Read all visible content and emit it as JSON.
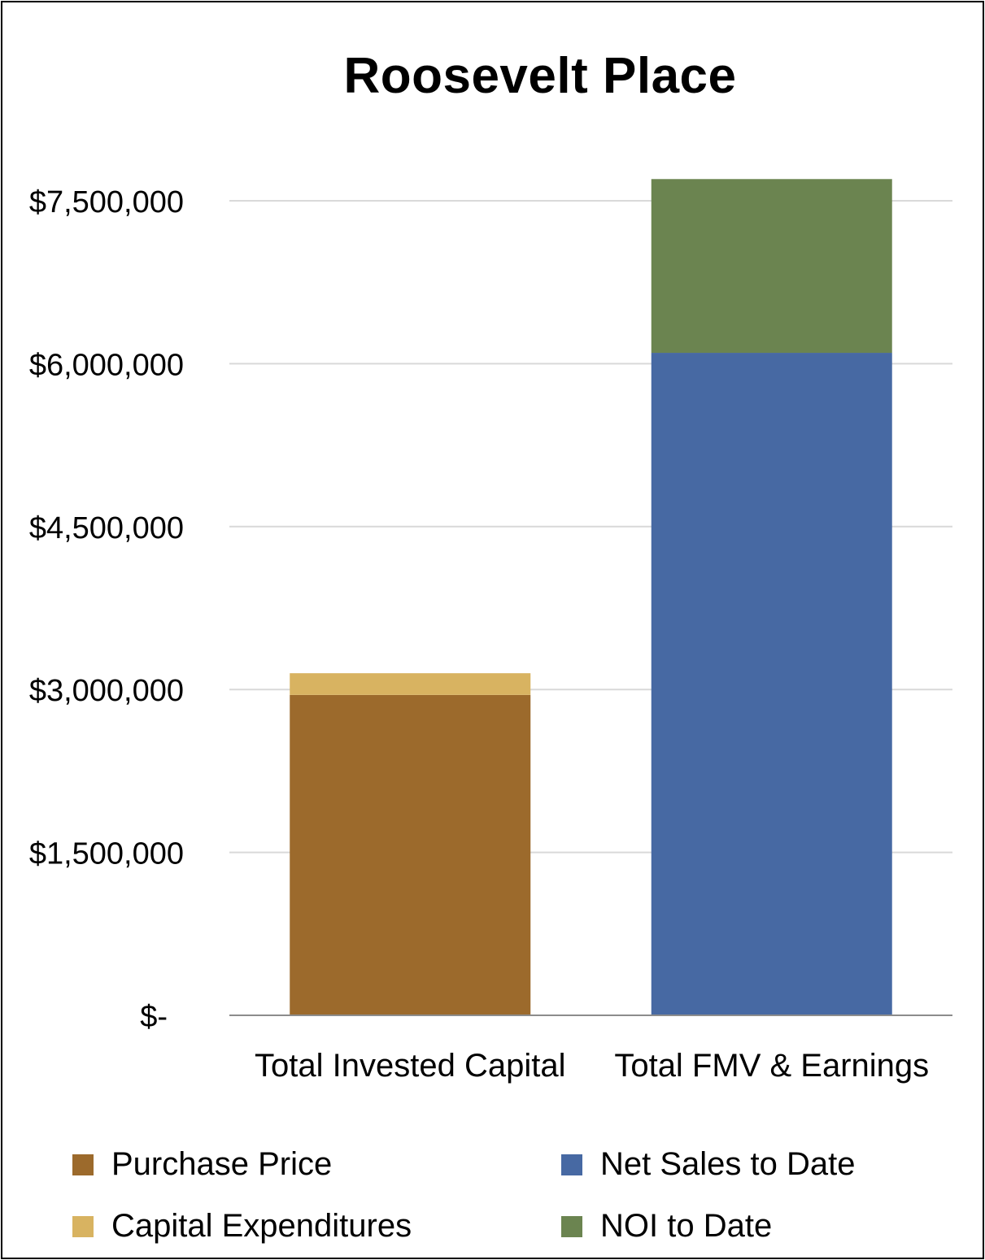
{
  "chart_data": {
    "type": "bar",
    "stacked": true,
    "title": "Roosevelt Place",
    "xlabel": "",
    "ylabel": "",
    "categories": [
      "Total Invested Capital",
      "Total FMV & Earnings"
    ],
    "series": [
      {
        "name": "Purchase Price",
        "values": [
          2950000,
          0
        ],
        "color": "#9C6A2C"
      },
      {
        "name": "Capital Expenditures",
        "values": [
          200000,
          0
        ],
        "color": "#D8B361"
      },
      {
        "name": "Net Sales to Date",
        "values": [
          0,
          6100000
        ],
        "color": "#4769A3"
      },
      {
        "name": "NOI to Date",
        "values": [
          0,
          1600000
        ],
        "color": "#6B8450"
      }
    ],
    "ylim": [
      0,
      7500000
    ],
    "yticks": [
      0,
      1500000,
      3000000,
      4500000,
      6000000,
      7500000
    ],
    "ytick_labels": [
      "$-",
      "$1,500,000",
      "$3,000,000",
      "$4,500,000",
      "$6,000,000",
      "$7,500,000"
    ],
    "grid": true,
    "legend_position": "bottom",
    "colors": {
      "gridline": "#D9D9D9",
      "axis": "#8C8C8C"
    }
  }
}
